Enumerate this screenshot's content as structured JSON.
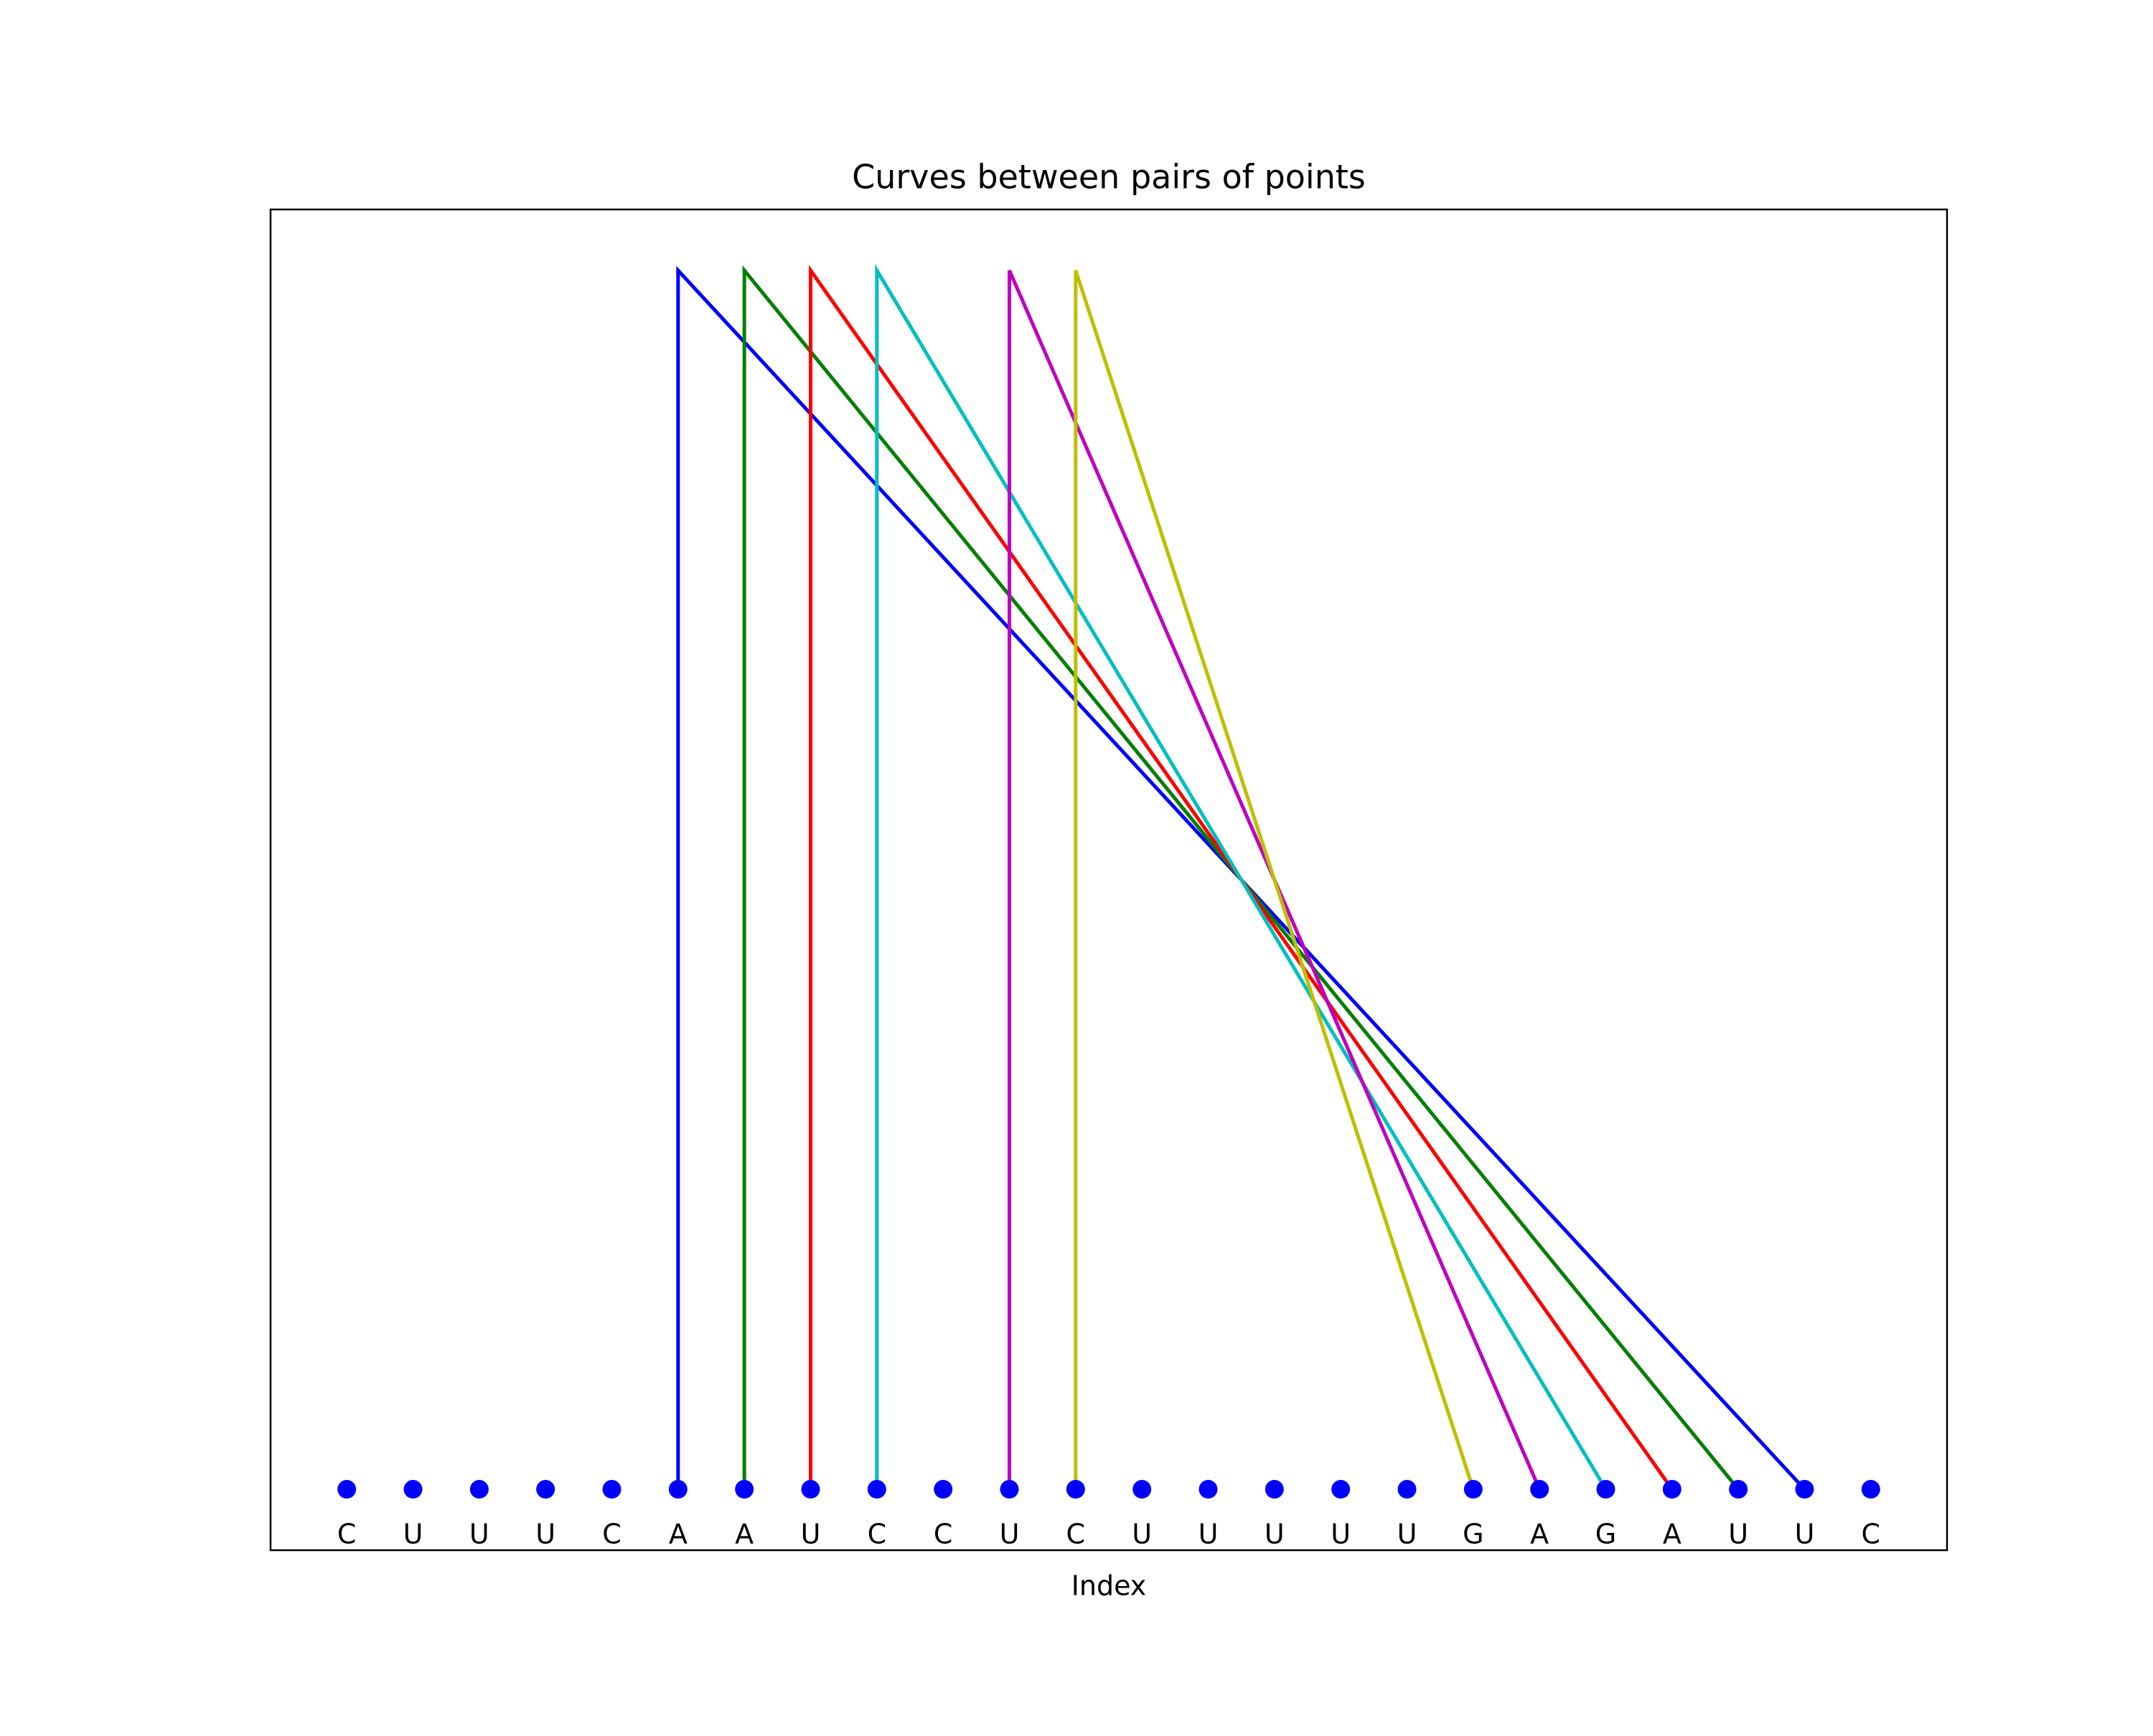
{
  "chart_data": {
    "type": "line",
    "title": "Curves between pairs of points",
    "xlabel": "Index",
    "xlim": [
      -1.15,
      24.15
    ],
    "ylim": [
      -0.05,
      1.05
    ],
    "points": {
      "x": [
        0,
        1,
        2,
        3,
        4,
        5,
        6,
        7,
        8,
        9,
        10,
        11,
        12,
        13,
        14,
        15,
        16,
        17,
        18,
        19,
        20,
        21,
        22,
        23
      ],
      "values": [
        0,
        0,
        0,
        0,
        0,
        0,
        0,
        0,
        0,
        0,
        0,
        0,
        0,
        0,
        0,
        0,
        0,
        0,
        0,
        0,
        0,
        0,
        0,
        0
      ],
      "labels": [
        "C",
        "U",
        "U",
        "U",
        "C",
        "A",
        "A",
        "U",
        "C",
        "C",
        "U",
        "C",
        "U",
        "U",
        "U",
        "U",
        "U",
        "G",
        "A",
        "G",
        "A",
        "U",
        "U",
        "C"
      ],
      "color": "#0000ff"
    },
    "series": [
      {
        "color": "#0000ff",
        "x": [
          5,
          5,
          22
        ],
        "values": [
          0,
          1,
          0
        ]
      },
      {
        "color": "#008000",
        "x": [
          6,
          6,
          21
        ],
        "values": [
          0,
          1,
          0
        ]
      },
      {
        "color": "#ff0000",
        "x": [
          7,
          7,
          20
        ],
        "values": [
          0,
          1,
          0
        ]
      },
      {
        "color": "#00bfbf",
        "x": [
          8,
          8,
          19
        ],
        "values": [
          0,
          1,
          0
        ]
      },
      {
        "color": "#bf00bf",
        "x": [
          10,
          10,
          18
        ],
        "values": [
          0,
          1,
          0
        ]
      },
      {
        "color": "#bfbf00",
        "x": [
          11,
          11,
          17
        ],
        "values": [
          0,
          1,
          0
        ]
      }
    ]
  }
}
